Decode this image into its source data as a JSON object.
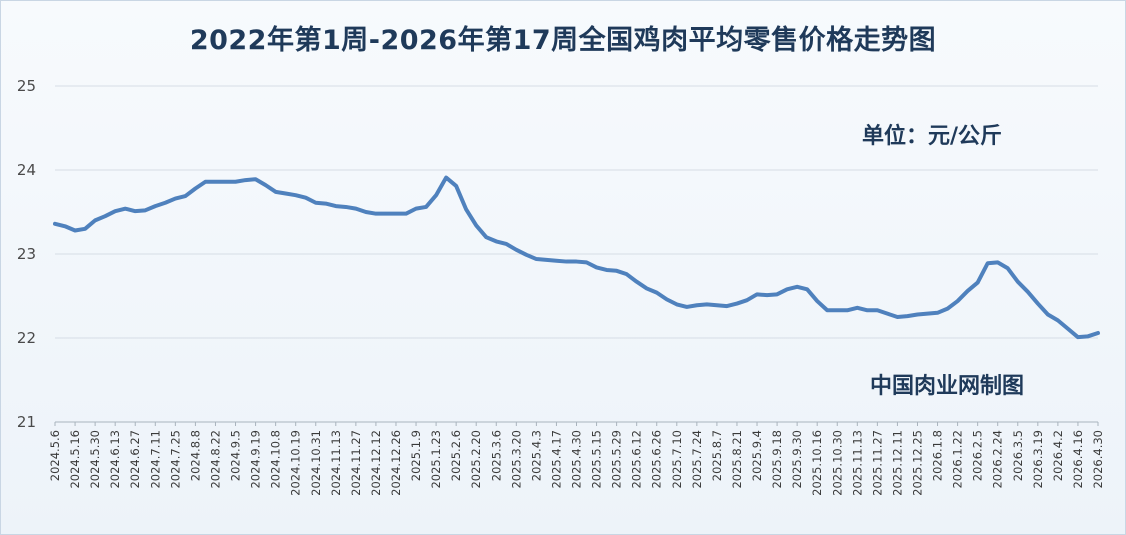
{
  "chart_data": {
    "type": "line",
    "title": "2022年第1周-2026年第17周全国鸡肉平均零售价格走势图",
    "unit_label": "单位：元/公斤",
    "source_label": "中国肉业网制图",
    "ylim": [
      21,
      25
    ],
    "yticks": [
      21,
      22,
      23,
      24,
      25
    ],
    "grid": true,
    "x_tick_labels": [
      "2024.5.6",
      "2024.5.16",
      "2024.5.30",
      "2024.6.13",
      "2024.6.27",
      "2024.7.11",
      "2024.7.25",
      "2024.8.8",
      "2024.8.22",
      "2024.9.5",
      "2024.9.19",
      "2024.10.8",
      "2024.10.19",
      "2024.10.31",
      "2024.11.13",
      "2024.11.27",
      "2024.12.12",
      "2024.12.26",
      "2025.1.9",
      "2025.1.23",
      "2025.2.6",
      "2025.2.20",
      "2025.3.6",
      "2025.3.20",
      "2025.4.3",
      "2025.4.17",
      "2025.4.30",
      "2025.5.15",
      "2025.5.29",
      "2025.6.12",
      "2025.6.26",
      "2025.7.10",
      "2025.7.24",
      "2025.8.7",
      "2025.8.21",
      "2025.9.4",
      "2025.9.18",
      "2025.9.30",
      "2025.10.16",
      "2025.10.30",
      "2025.11.13",
      "2025.11.27",
      "2025.12.11",
      "2025.12.25",
      "2026.1.8",
      "2026.1.22",
      "2026.2.5",
      "2026.2.24",
      "2026.3.5",
      "2026.3.19",
      "2026.4.2",
      "2026.4.16",
      "2026.4.30"
    ],
    "series": [
      {
        "color": "#4f81bd",
        "values": [
          23.36,
          23.33,
          23.28,
          23.3,
          23.4,
          23.45,
          23.51,
          23.54,
          23.51,
          23.52,
          23.57,
          23.61,
          23.66,
          23.69,
          23.78,
          23.86,
          23.86,
          23.86,
          23.86,
          23.88,
          23.89,
          23.82,
          23.74,
          23.72,
          23.7,
          23.67,
          23.61,
          23.6,
          23.57,
          23.56,
          23.54,
          23.5,
          23.48,
          23.48,
          23.48,
          23.48,
          23.54,
          23.56,
          23.7,
          23.91,
          23.81,
          23.53,
          23.34,
          23.2,
          23.15,
          23.12,
          23.05,
          22.99,
          22.94,
          22.93,
          22.92,
          22.91,
          22.91,
          22.9,
          22.84,
          22.81,
          22.8,
          22.76,
          22.67,
          22.59,
          22.54,
          22.46,
          22.4,
          22.37,
          22.39,
          22.4,
          22.39,
          22.38,
          22.41,
          22.45,
          22.52,
          22.51,
          22.52,
          22.58,
          22.61,
          22.58,
          22.44,
          22.33,
          22.33,
          22.33,
          22.36,
          22.33,
          22.33,
          22.29,
          22.25,
          22.26,
          22.28,
          22.29,
          22.3,
          22.35,
          22.44,
          22.56,
          22.66,
          22.89,
          22.9,
          22.83,
          22.67,
          22.55,
          22.41,
          22.28,
          22.21,
          22.11,
          22.01,
          22.02,
          22.06
        ]
      }
    ]
  }
}
